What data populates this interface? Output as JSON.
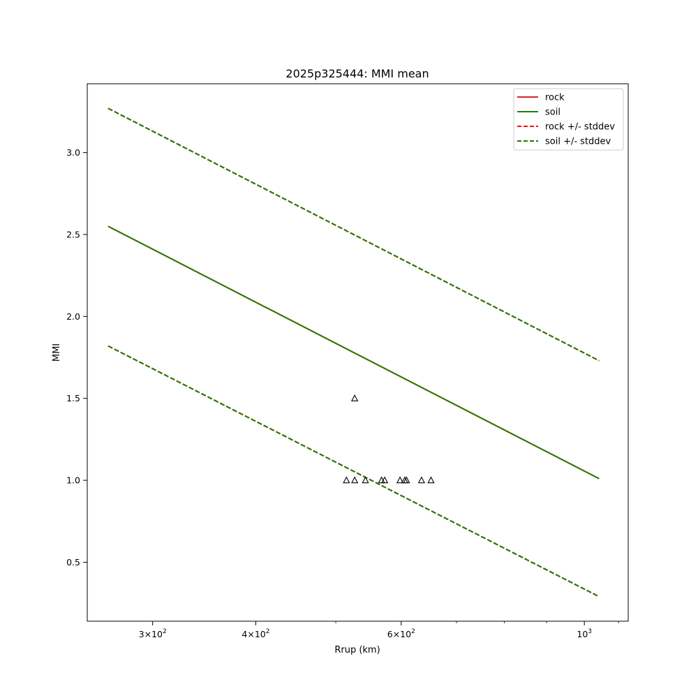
{
  "chart_data": {
    "type": "line",
    "title": "2025p325444: MMI mean",
    "xlabel": "Rrup (km)",
    "ylabel": "MMI",
    "x_scale": "log",
    "xlim": [
      250,
      1130
    ],
    "ylim": [
      0.14,
      3.42
    ],
    "x_ticks": [
      {
        "value": 300,
        "base": "3",
        "exp": "2"
      },
      {
        "value": 400,
        "base": "4",
        "exp": "2"
      },
      {
        "value": 600,
        "base": "6",
        "exp": "2"
      },
      {
        "value": 1000,
        "base": "10",
        "exp": "3"
      }
    ],
    "x_ticks_prefix": "×",
    "y_ticks": [
      "0.5",
      "1.0",
      "1.5",
      "2.0",
      "2.5",
      "3.0"
    ],
    "grid": false,
    "legend_placement": "top-right",
    "series": [
      {
        "name": "rock",
        "style": "solid",
        "color": "#d62728",
        "x": [
          265,
          1042
        ],
        "values": [
          2.55,
          1.01
        ]
      },
      {
        "name": "soil",
        "style": "solid",
        "color": "#2a7a00",
        "x": [
          265,
          1042
        ],
        "values": [
          2.55,
          1.01
        ]
      },
      {
        "name": "rock +/- stddev",
        "style": "dashed",
        "color": "#ff0000",
        "x": [
          265,
          1042
        ],
        "values": [
          3.27,
          1.73
        ],
        "lower": [
          1.82,
          0.29
        ]
      },
      {
        "name": "soil +/- stddev",
        "style": "dashed",
        "color": "#1f7a00",
        "x": [
          265,
          1042
        ],
        "values": [
          3.27,
          1.73
        ],
        "lower": [
          1.82,
          0.29
        ]
      }
    ],
    "observations": {
      "marker": "triangle",
      "x": [
        515,
        527,
        527,
        543,
        568,
        573,
        598,
        606,
        609,
        635,
        652
      ],
      "y": [
        1.0,
        1.0,
        1.5,
        1.0,
        1.0,
        1.0,
        1.0,
        1.0,
        1.0,
        1.0,
        1.0
      ]
    }
  }
}
